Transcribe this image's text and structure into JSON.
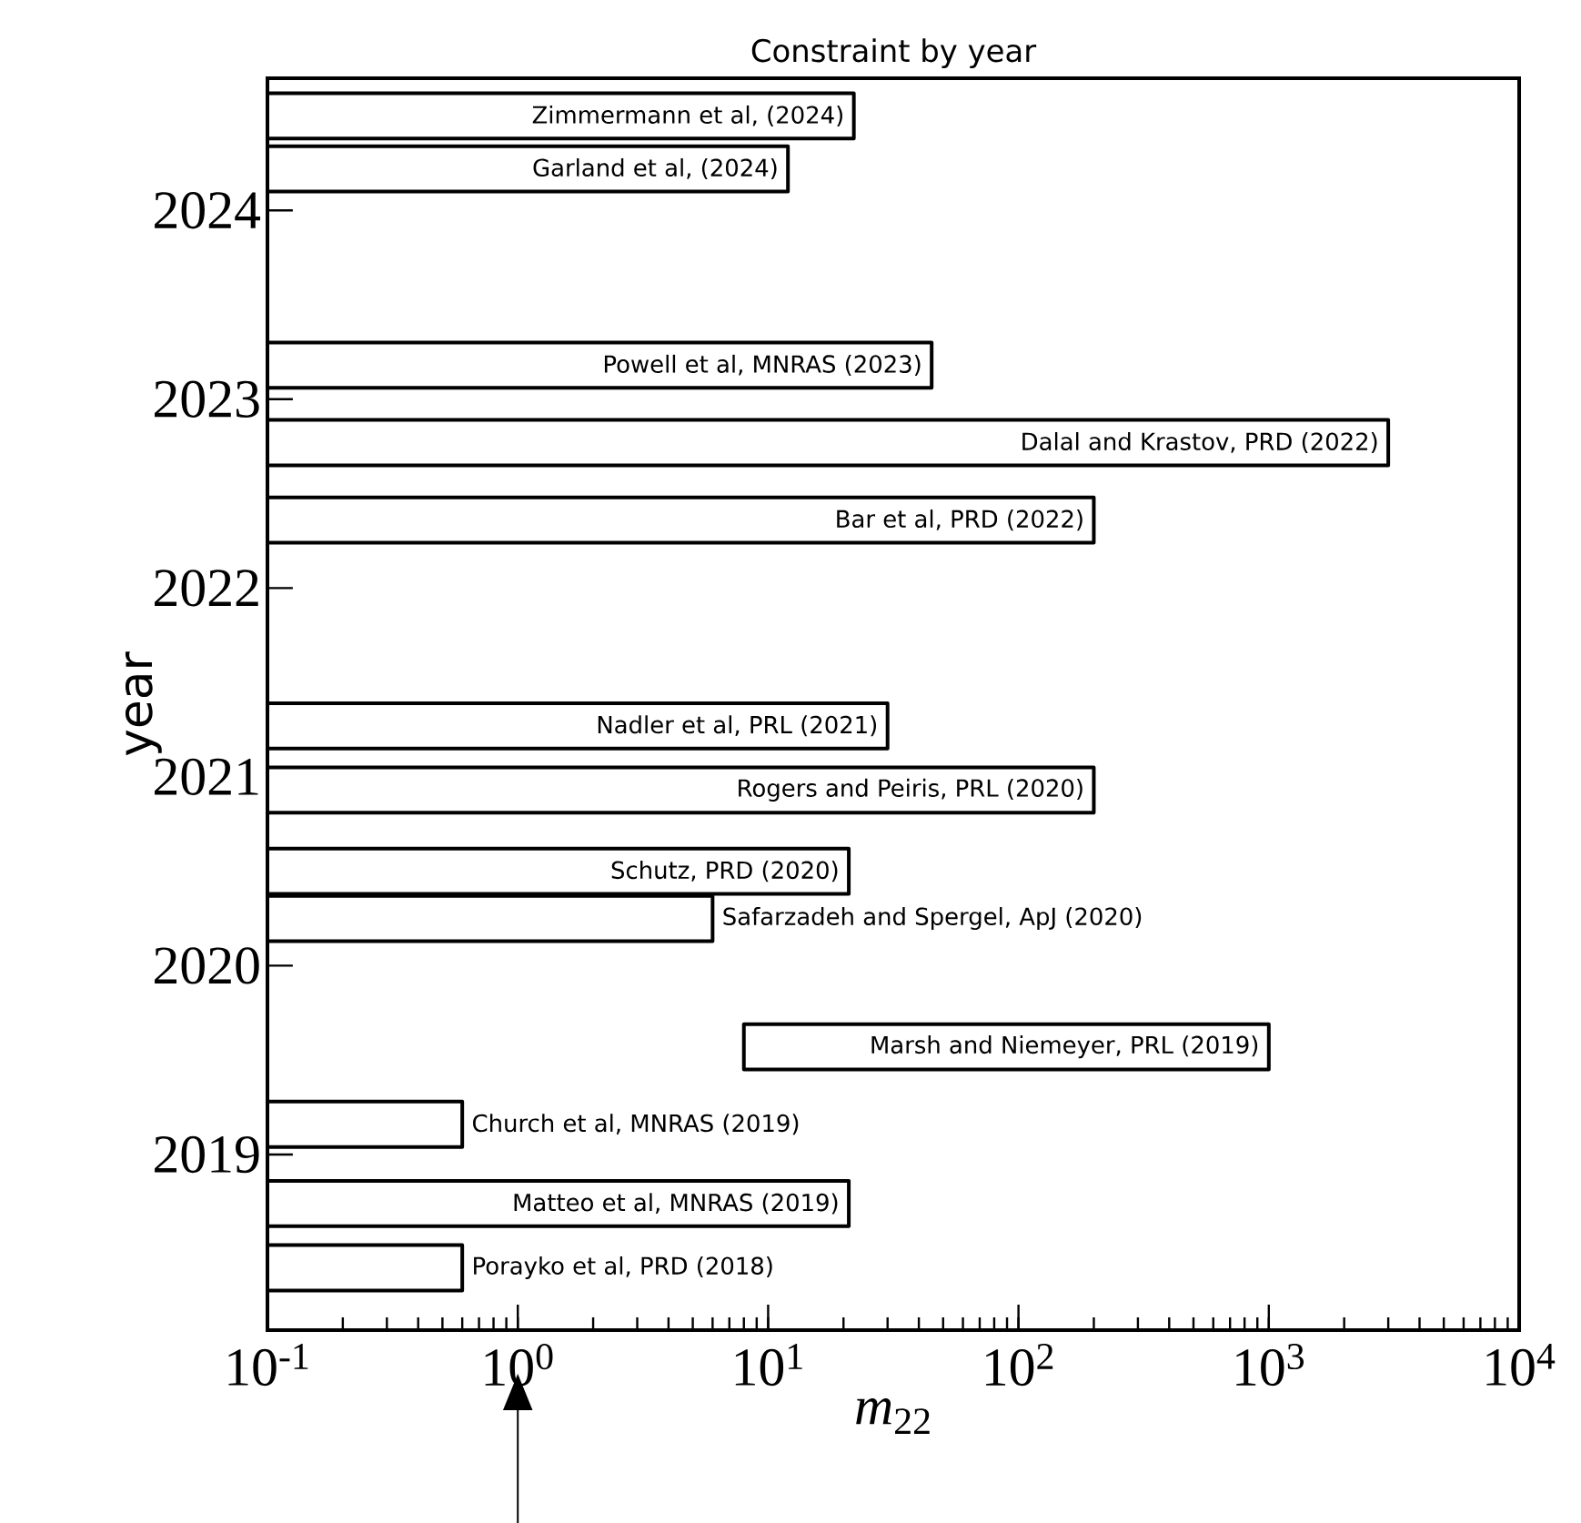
{
  "chart_data": {
    "type": "bar",
    "orientation": "horizontal",
    "title": "Constraint by year",
    "xlabel": "*m*$_{22}$",
    "ylabel": "year",
    "log": "x",
    "color": "#ffffff",
    "x": [
      2024.5,
      2024.22,
      2023.18,
      2022.77,
      2022.36,
      2021.27,
      2020.93,
      2020.5,
      2020.25,
      2019.57,
      2019.16,
      2018.74,
      2018.4
    ],
    "base": [
      0.1,
      0.1,
      0.1,
      0.1,
      0.1,
      0.1,
      0.1,
      0.1,
      0.1,
      8,
      0.1,
      0.1,
      0.1
    ],
    "values": [
      21.9,
      11.9,
      44.9,
      2999.9,
      199.9,
      29.9,
      199.9,
      20.9,
      5.9,
      992,
      0.5,
      20.9,
      0.5
    ],
    "xlim": [
      0.1,
      10000
    ],
    "ylim": [
      2018.07,
      2024.7
    ],
    "xticks": [
      {
        "value": 0.1,
        "label": "10$^{-1}$"
      },
      {
        "value": 1,
        "label": "10$^{0}$"
      },
      {
        "value": 10,
        "label": "10$^{1}$"
      },
      {
        "value": 100,
        "label": "10$^{2}$"
      },
      {
        "value": 1000,
        "label": "10$^{3}$"
      },
      {
        "value": 10000,
        "label": "10$^{4}$"
      }
    ],
    "yticks": [
      2019,
      2020,
      2021,
      2022,
      2023,
      2024
    ],
    "annotations": [
      {
        "text": "Zimmermann et al, (2024)",
        "x": 22,
        "y": 2024.5
      },
      {
        "text": "Garland et al, (2024)",
        "x": 12,
        "y": 2024.22
      },
      {
        "text": "Powell et al, MNRAS (2023)",
        "x": 45,
        "y": 2023.18
      },
      {
        "text": "Dalal and Krastov, PRD (2022)",
        "x": 3000,
        "y": 2022.77
      },
      {
        "text": "Bar et al, PRD (2022)",
        "x": 200,
        "y": 2022.36
      },
      {
        "text": "Nadler et al, PRL (2021)",
        "x": 30,
        "y": 2021.27
      },
      {
        "text": "Rogers and Peiris, PRL (2020)",
        "x": 200,
        "y": 2020.93
      },
      {
        "text": "Schutz, PRD (2020)",
        "x": 21,
        "y": 2020.5
      },
      {
        "text": "Safarzadeh and Spergel, ApJ (2020)",
        "x": 6,
        "y": 2020.25
      },
      {
        "text": "Marsh and Niemeyer, PRL (2019)",
        "x": 1000,
        "y": 2019.57
      },
      {
        "text": "Church et al, MNRAS (2019)",
        "x": 0.6,
        "y": 2019.16
      },
      {
        "text": "Matteo et al, MNRAS (2019)",
        "x": 21,
        "y": 2018.74
      },
      {
        "text": "Porayko et al, PRD (2018)",
        "x": 0.6,
        "y": 2018.4
      }
    ]
  }
}
